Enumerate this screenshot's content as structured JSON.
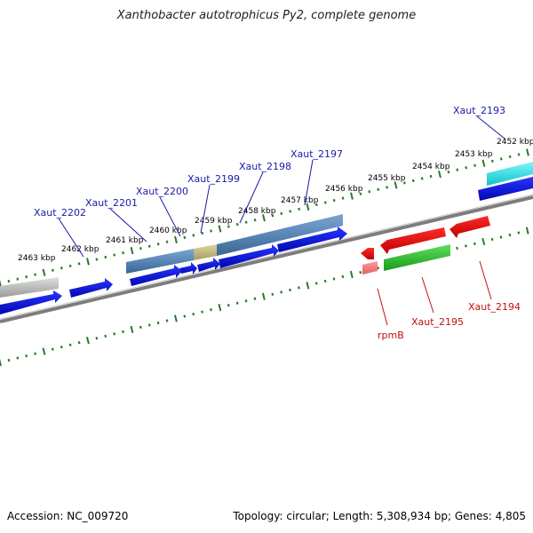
{
  "title": "Xanthobacter autotrophicus Py2, complete genome",
  "footer": {
    "accession": "Accession: NC_009720",
    "topology": "Topology: circular; Length: 5,308,934 bp; Genes: 4,805"
  },
  "colors": {
    "tick": "#2a7a2a",
    "backbone": "#7d7d7d",
    "gene_blue": "#0a14e0",
    "gene_red": "#ee1010",
    "gene_green": "#2ab82a",
    "cds_steel": "#4a7bb0",
    "cds_olive": "#bdb27a",
    "cds_cyan": "#14e0e8",
    "cds_gray": "#b4b4b4",
    "forward_label": "#1a1aa8",
    "reverse_label": "#c01010"
  },
  "kbp_ticks": [
    "2452 kbp",
    "2453 kbp",
    "2454 kbp",
    "2455 kbp",
    "2456 kbp",
    "2457 kbp",
    "2458 kbp",
    "2459 kbp",
    "2460 kbp",
    "2461 kbp",
    "2462 kbp",
    "2463 kbp"
  ],
  "forward_labels": [
    "Xaut_2193",
    "Xaut_2197",
    "Xaut_2198",
    "Xaut_2199",
    "Xaut_2200",
    "Xaut_2201",
    "Xaut_2202"
  ],
  "reverse_labels": [
    "Xaut_2194",
    "Xaut_2195",
    "rpmB"
  ]
}
